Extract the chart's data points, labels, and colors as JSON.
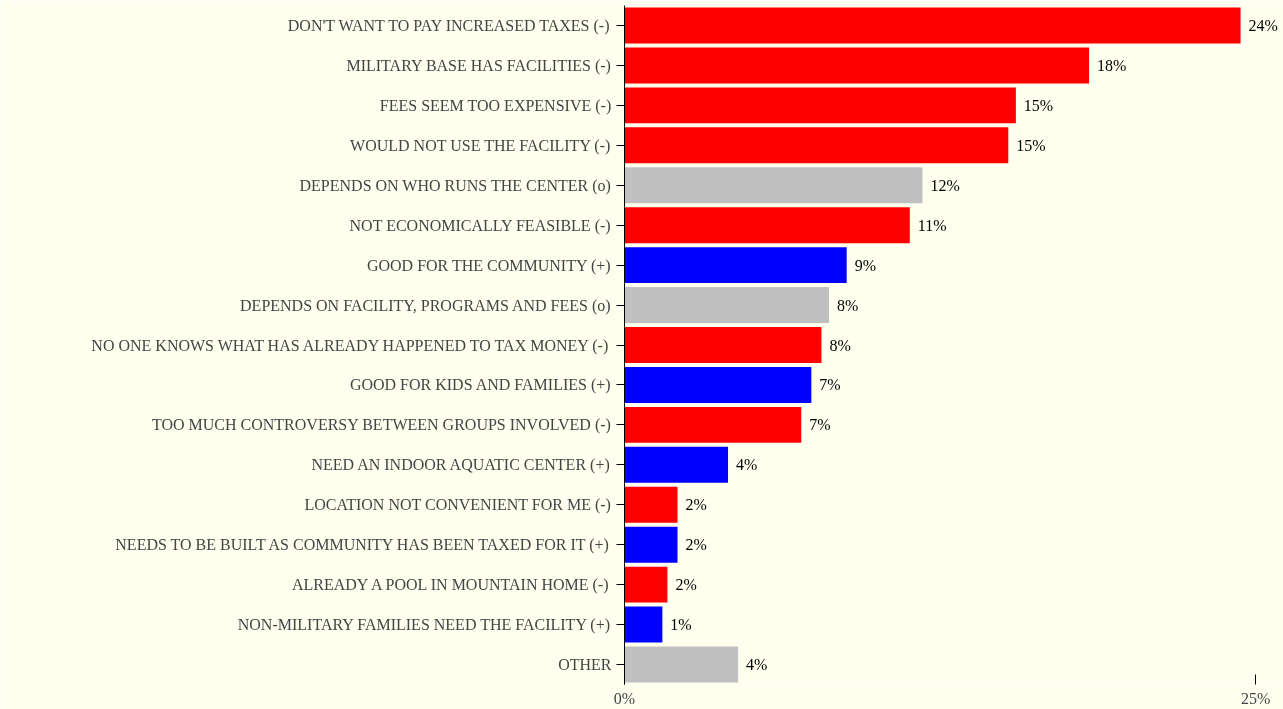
{
  "chart_data": {
    "type": "bar",
    "orientation": "horizontal",
    "categories": [
      "DON'T WANT TO PAY INCREASED TAXES (-)",
      "MILITARY BASE HAS FACILITIES (-)",
      "FEES SEEM TOO EXPENSIVE (-)",
      "WOULD NOT USE THE FACILITY (-)",
      "DEPENDS ON WHO RUNS THE CENTER (o)",
      "NOT ECONOMICALLY FEASIBLE (-)",
      "GOOD FOR THE COMMUNITY (+)",
      "DEPENDS ON FACILITY, PROGRAMS AND FEES (o)",
      "NO ONE KNOWS WHAT HAS ALREADY HAPPENED TO TAX MONEY (-)",
      "GOOD FOR KIDS AND FAMILIES (+)",
      "TOO MUCH CONTROVERSY BETWEEN GROUPS INVOLVED (-)",
      "NEED AN INDOOR AQUATIC CENTER (+)",
      "LOCATION NOT CONVENIENT FOR ME (-)",
      "NEEDS TO BE BUILT AS COMMUNITY HAS BEEN TAXED FOR IT (+)",
      "ALREADY A POOL IN MOUNTAIN HOME (-)",
      "NON-MILITARY FAMILIES NEED THE FACILITY (+)",
      "OTHER"
    ],
    "values": [
      24.4,
      18.4,
      15.5,
      15.2,
      11.8,
      11.3,
      8.8,
      8.1,
      7.8,
      7.4,
      7.0,
      4.1,
      2.1,
      2.1,
      1.7,
      1.5,
      4.5
    ],
    "value_labels": [
      "24%",
      "18%",
      "15%",
      "15%",
      "12%",
      "11%",
      "9%",
      "8%",
      "8%",
      "7%",
      "7%",
      "4%",
      "2%",
      "2%",
      "2%",
      "1%",
      "4%"
    ],
    "colors": [
      "#ff0000",
      "#ff0000",
      "#ff0000",
      "#ff0000",
      "#c0c0c0",
      "#ff0000",
      "#0000ff",
      "#c0c0c0",
      "#ff0000",
      "#0000ff",
      "#ff0000",
      "#0000ff",
      "#ff0000",
      "#0000ff",
      "#ff0000",
      "#0000ff",
      "#c0c0c0"
    ],
    "xlim": [
      0,
      26.1
    ],
    "xticks": [
      {
        "value": 0,
        "label": "0%"
      },
      {
        "value": 25,
        "label": "25%"
      }
    ],
    "grid": false
  }
}
